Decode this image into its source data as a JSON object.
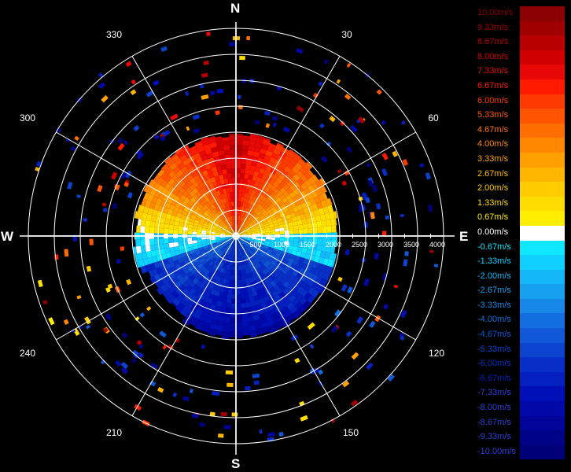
{
  "compass": {
    "north": "N",
    "east": "E",
    "south": "S",
    "west": "W"
  },
  "azimuth_labels": [
    "30",
    "60",
    "120",
    "150",
    "210",
    "240",
    "300",
    "330"
  ],
  "range_labels": [
    "500",
    "1000",
    "1500",
    "2000",
    "2500",
    "3000",
    "3500",
    "4000"
  ],
  "legend": [
    {
      "label": "10.00m/s",
      "color": "#8b0000"
    },
    {
      "label": "9.33m/s",
      "color": "#a00000"
    },
    {
      "label": "8.67m/s",
      "color": "#b80000"
    },
    {
      "label": "8.00m/s",
      "color": "#d00000"
    },
    {
      "label": "7.33m/s",
      "color": "#e80808"
    },
    {
      "label": "6.67m/s",
      "color": "#ff1a00"
    },
    {
      "label": "6.00m/s",
      "color": "#ff3a00"
    },
    {
      "label": "5.33m/s",
      "color": "#ff5500"
    },
    {
      "label": "4.67m/s",
      "color": "#ff6e00"
    },
    {
      "label": "4.00m/s",
      "color": "#ff8800"
    },
    {
      "label": "3.33m/s",
      "color": "#ff9f00"
    },
    {
      "label": "2.67m/s",
      "color": "#ffb600"
    },
    {
      "label": "2.00m/s",
      "color": "#ffcc00"
    },
    {
      "label": "1.33m/s",
      "color": "#ffdd00"
    },
    {
      "label": "0.67m/s",
      "color": "#ffee00"
    },
    {
      "label": "0.00m/s",
      "color": "#ffffff"
    },
    {
      "label": "-0.67m/s",
      "color": "#10e8ff"
    },
    {
      "label": "-1.33m/s",
      "color": "#10d0ff"
    },
    {
      "label": "-2.00m/s",
      "color": "#14b8f8"
    },
    {
      "label": "-2.67m/s",
      "color": "#18a0f0"
    },
    {
      "label": "-3.33m/s",
      "color": "#1888e8"
    },
    {
      "label": "-4.00m/s",
      "color": "#1470e0"
    },
    {
      "label": "-4.67m/s",
      "color": "#1058d8"
    },
    {
      "label": "-5.33m/s",
      "color": "#0c44d0"
    },
    {
      "label": "-6.00m/s",
      "color": "#0830c8"
    },
    {
      "label": "-6.67m/s",
      "color": "#0420c0"
    },
    {
      "label": "-7.33m/s",
      "color": "#0010b8"
    },
    {
      "label": "-8.00m/s",
      "color": "#0008a8"
    },
    {
      "label": "-8.67m/s",
      "color": "#000498"
    },
    {
      "label": "-9.33m/s",
      "color": "#000288"
    },
    {
      "label": "-10.00m/s",
      "color": "#000078"
    }
  ]
}
